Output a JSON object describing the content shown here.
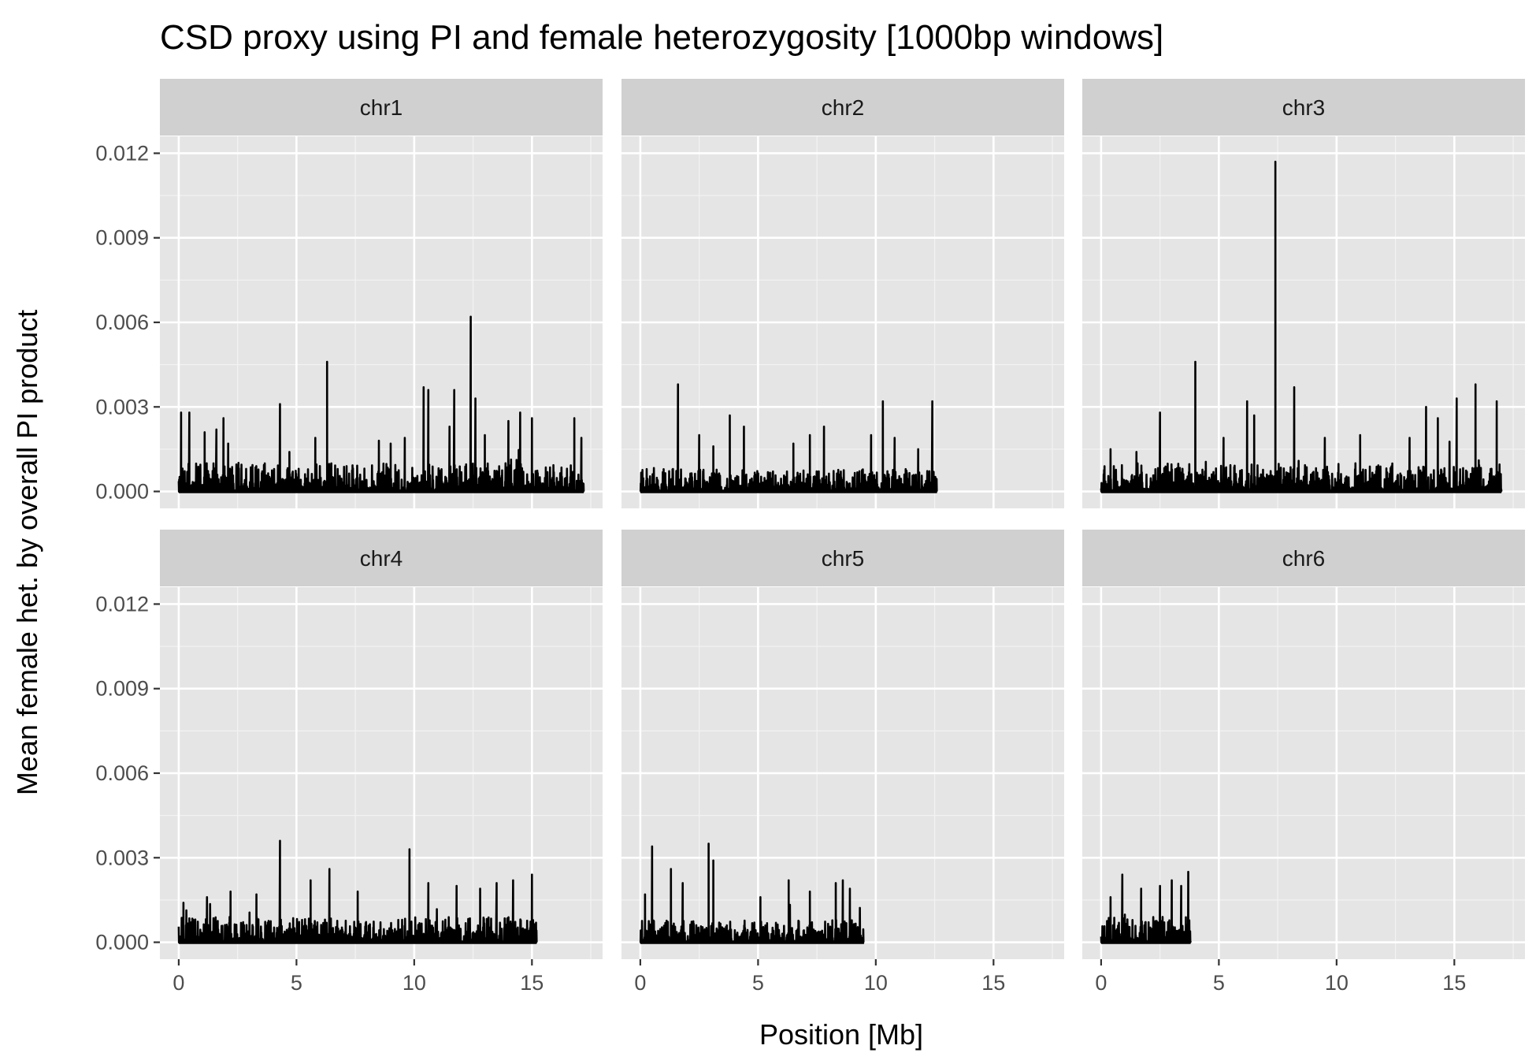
{
  "chart_data": {
    "type": "line",
    "title": "CSD proxy using PI and female heterozygosity [1000bp windows]",
    "xlabel": "Position [Mb]",
    "ylabel": "Mean female het. by overall PI product",
    "xlim": [
      -0.8,
      18.0
    ],
    "ylim": [
      -0.0006,
      0.0126
    ],
    "x_ticks": [
      0,
      5,
      10,
      15
    ],
    "y_ticks": [
      0.0,
      0.003,
      0.006,
      0.009,
      0.012
    ],
    "y_tick_labels": [
      "0.000",
      "0.003",
      "0.006",
      "0.009",
      "0.012"
    ],
    "grid": true,
    "line_color": "#000000",
    "panel_background": "#e5e5e5",
    "strip_background": "#d0d0d0",
    "facets": [
      {
        "label": "chr1",
        "length": 17.2,
        "base": 0.001,
        "peaks": [
          [
            0.1,
            0.0028
          ],
          [
            0.45,
            0.0028
          ],
          [
            1.1,
            0.0021
          ],
          [
            1.6,
            0.0022
          ],
          [
            1.9,
            0.0026
          ],
          [
            2.1,
            0.0017
          ],
          [
            4.3,
            0.0031
          ],
          [
            4.7,
            0.0014
          ],
          [
            5.8,
            0.0019
          ],
          [
            6.3,
            0.0046
          ],
          [
            8.5,
            0.0018
          ],
          [
            9.0,
            0.0017
          ],
          [
            9.6,
            0.0019
          ],
          [
            10.4,
            0.0037
          ],
          [
            10.6,
            0.0036
          ],
          [
            11.5,
            0.0023
          ],
          [
            11.7,
            0.0036
          ],
          [
            12.4,
            0.0062
          ],
          [
            12.6,
            0.0033
          ],
          [
            13.0,
            0.002
          ],
          [
            14.0,
            0.0025
          ],
          [
            14.5,
            0.0028
          ],
          [
            15.0,
            0.0026
          ],
          [
            16.8,
            0.0026
          ],
          [
            17.1,
            0.0019
          ]
        ]
      },
      {
        "label": "chr2",
        "length": 12.6,
        "base": 0.0008,
        "peaks": [
          [
            1.6,
            0.0038
          ],
          [
            2.5,
            0.002
          ],
          [
            3.1,
            0.0016
          ],
          [
            3.8,
            0.0027
          ],
          [
            4.4,
            0.0023
          ],
          [
            6.5,
            0.0017
          ],
          [
            7.2,
            0.002
          ],
          [
            7.8,
            0.0023
          ],
          [
            9.8,
            0.002
          ],
          [
            10.3,
            0.0032
          ],
          [
            10.8,
            0.0019
          ],
          [
            11.8,
            0.0015
          ],
          [
            12.4,
            0.0032
          ]
        ]
      },
      {
        "label": "chr3",
        "length": 17.0,
        "base": 0.001,
        "peaks": [
          [
            0.4,
            0.0015
          ],
          [
            1.5,
            0.0014
          ],
          [
            2.5,
            0.0028
          ],
          [
            4.0,
            0.0046
          ],
          [
            5.2,
            0.0019
          ],
          [
            6.2,
            0.0032
          ],
          [
            6.5,
            0.0027
          ],
          [
            7.4,
            0.0117
          ],
          [
            8.2,
            0.0037
          ],
          [
            9.5,
            0.0019
          ],
          [
            11.0,
            0.002
          ],
          [
            13.1,
            0.0019
          ],
          [
            13.8,
            0.003
          ],
          [
            14.3,
            0.0026
          ],
          [
            15.1,
            0.0033
          ],
          [
            15.9,
            0.0038
          ],
          [
            16.8,
            0.0032
          ]
        ]
      },
      {
        "label": "chr4",
        "length": 15.2,
        "base": 0.0009,
        "peaks": [
          [
            0.2,
            0.0014
          ],
          [
            1.2,
            0.0016
          ],
          [
            2.2,
            0.0018
          ],
          [
            3.3,
            0.0017
          ],
          [
            4.3,
            0.0036
          ],
          [
            5.6,
            0.0022
          ],
          [
            6.4,
            0.0026
          ],
          [
            7.6,
            0.0018
          ],
          [
            9.8,
            0.0033
          ],
          [
            10.6,
            0.0021
          ],
          [
            11.8,
            0.002
          ],
          [
            12.8,
            0.0019
          ],
          [
            13.5,
            0.0021
          ],
          [
            14.2,
            0.0022
          ],
          [
            15.0,
            0.0024
          ]
        ]
      },
      {
        "label": "chr5",
        "length": 9.5,
        "base": 0.0008,
        "peaks": [
          [
            0.2,
            0.0017
          ],
          [
            0.5,
            0.0034
          ],
          [
            1.3,
            0.0026
          ],
          [
            1.8,
            0.0021
          ],
          [
            2.9,
            0.0035
          ],
          [
            3.1,
            0.0029
          ],
          [
            5.1,
            0.0016
          ],
          [
            6.3,
            0.0022
          ],
          [
            7.2,
            0.0018
          ],
          [
            8.3,
            0.0021
          ],
          [
            8.6,
            0.0022
          ],
          [
            8.9,
            0.0019
          ]
        ]
      },
      {
        "label": "chr6",
        "length": 3.8,
        "base": 0.0009,
        "peaks": [
          [
            0.4,
            0.0016
          ],
          [
            0.9,
            0.0024
          ],
          [
            1.7,
            0.0019
          ],
          [
            2.5,
            0.002
          ],
          [
            3.0,
            0.0022
          ],
          [
            3.4,
            0.002
          ],
          [
            3.7,
            0.0025
          ]
        ]
      }
    ]
  }
}
